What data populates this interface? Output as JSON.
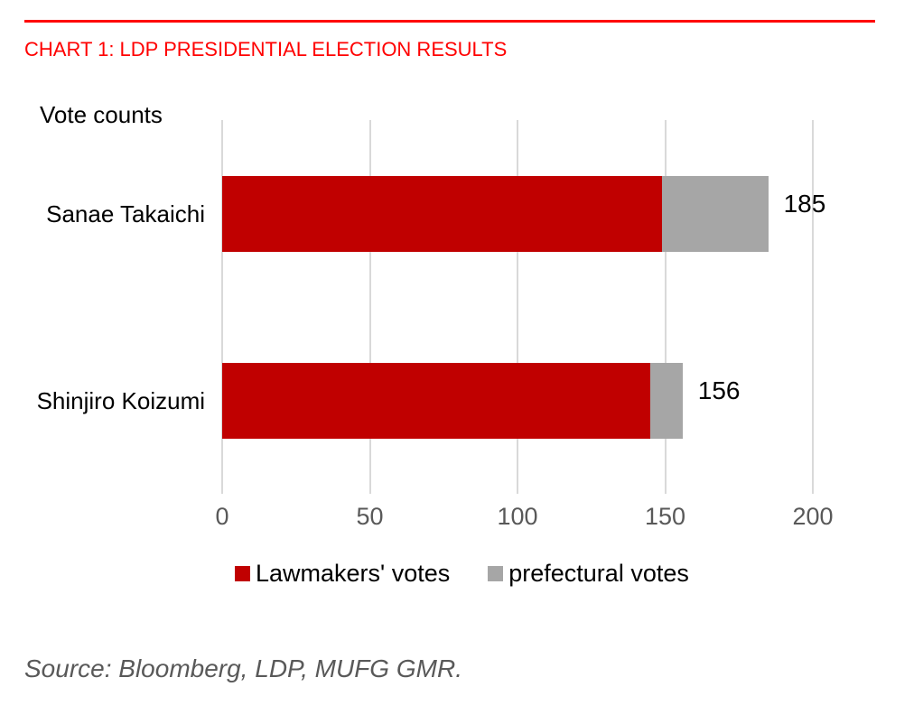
{
  "source_note": "Source: Bloomberg, LDP, MUFG GMR.",
  "chart_data": {
    "type": "bar",
    "orientation": "horizontal",
    "stacked": true,
    "title": "CHART 1: LDP PRESIDENTIAL ELECTION RESULTS",
    "axis_title": "Vote counts",
    "categories": [
      "Sanae Takaichi",
      "Shinjiro Koizumi"
    ],
    "series": [
      {
        "name": "Lawmakers' votes",
        "color": "#C00000",
        "values": [
          149,
          145
        ]
      },
      {
        "name": "prefectural votes",
        "color": "#A6A6A6",
        "values": [
          36,
          11
        ]
      }
    ],
    "totals": [
      185,
      156
    ],
    "total_labels": [
      "185",
      "156"
    ],
    "xlim": [
      0,
      200
    ],
    "xticks": [
      0,
      50,
      100,
      150,
      200
    ],
    "xtick_labels": [
      "0",
      "50",
      "100",
      "150",
      "200"
    ],
    "grid": "vertical-gridlines",
    "legend_position": "bottom"
  },
  "colors": {
    "accent_red": "#FF0000",
    "bar_red": "#C00000",
    "bar_gray": "#A6A6A6",
    "gridline": "#D9D9D9",
    "axis_label": "#595959",
    "text": "#000000"
  }
}
